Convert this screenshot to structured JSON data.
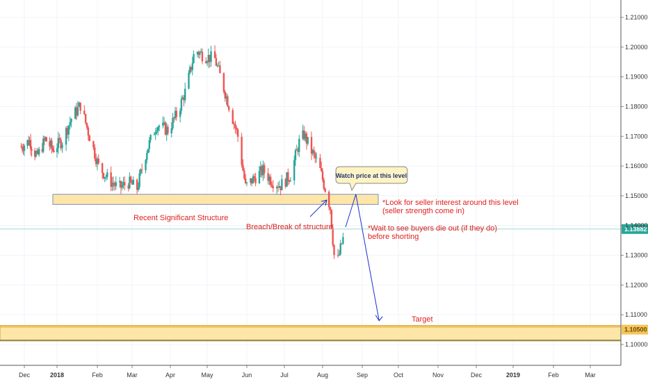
{
  "chart_data": {
    "type": "candlestick",
    "title": "",
    "y_axis": {
      "ticks": [
        "1.21000",
        "1.20000",
        "1.19000",
        "1.18000",
        "1.17000",
        "1.16000",
        "1.15000",
        "1.14000",
        "1.13000",
        "1.12000",
        "1.11000",
        "1.10000"
      ],
      "range": [
        1.0958,
        1.2136
      ]
    },
    "x_axis": {
      "ticks": [
        "Dec",
        "2018",
        "Feb",
        "Mar",
        "Apr",
        "May",
        "Jun",
        "Jul",
        "Aug",
        "Sep",
        "Oct",
        "Nov",
        "Dec",
        "2019",
        "Feb",
        "Mar"
      ]
    },
    "current_price": {
      "label": "1.13882",
      "value": 1.13882
    },
    "target_price": {
      "label": "1.10500",
      "value": 1.105
    },
    "zones": [
      {
        "name": "Recent Significant Structure",
        "from_price": 1.1471,
        "to_price": 1.1505
      },
      {
        "name": "Target",
        "from_price": 1.1012,
        "to_price": 1.1064
      }
    ],
    "annotations": [
      "Recent Significant Structure",
      "Breach/Break of structure",
      "*Look for seller interest around this level",
      "(seller strength come in)",
      "*Wait to see buyers die out (if they do)",
      "before shorting",
      "Target"
    ],
    "callout": "Watch price at this level",
    "price_path": [
      {
        "date": "2017-11-28",
        "close": 1.1665
      },
      {
        "date": "2017-12-06",
        "close": 1.1685
      },
      {
        "date": "2017-12-13",
        "close": 1.163
      },
      {
        "date": "2017-12-21",
        "close": 1.169
      },
      {
        "date": "2017-12-28",
        "close": 1.1655
      },
      {
        "date": "2018-01-05",
        "close": 1.1685
      },
      {
        "date": "2018-01-12",
        "close": 1.176
      },
      {
        "date": "2018-01-19",
        "close": 1.1805
      },
      {
        "date": "2018-01-26",
        "close": 1.17
      },
      {
        "date": "2018-02-02",
        "close": 1.16
      },
      {
        "date": "2018-02-10",
        "close": 1.1555
      },
      {
        "date": "2018-02-18",
        "close": 1.1525
      },
      {
        "date": "2018-02-26",
        "close": 1.1545
      },
      {
        "date": "2018-03-05",
        "close": 1.1525
      },
      {
        "date": "2018-03-13",
        "close": 1.1655
      },
      {
        "date": "2018-03-21",
        "close": 1.174
      },
      {
        "date": "2018-03-30",
        "close": 1.172
      },
      {
        "date": "2018-04-07",
        "close": 1.178
      },
      {
        "date": "2018-04-14",
        "close": 1.186
      },
      {
        "date": "2018-04-21",
        "close": 1.199
      },
      {
        "date": "2018-04-29",
        "close": 1.197
      },
      {
        "date": "2018-05-07",
        "close": 1.196
      },
      {
        "date": "2018-05-12",
        "close": 1.189
      },
      {
        "date": "2018-05-19",
        "close": 1.179
      },
      {
        "date": "2018-05-25",
        "close": 1.17
      },
      {
        "date": "2018-05-31",
        "close": 1.153
      },
      {
        "date": "2018-06-07",
        "close": 1.156
      },
      {
        "date": "2018-06-14",
        "close": 1.1585
      },
      {
        "date": "2018-06-21",
        "close": 1.155
      },
      {
        "date": "2018-06-28",
        "close": 1.1535
      },
      {
        "date": "2018-07-06",
        "close": 1.157
      },
      {
        "date": "2018-07-13",
        "close": 1.168
      },
      {
        "date": "2018-07-17",
        "close": 1.1705
      },
      {
        "date": "2018-07-23",
        "close": 1.165
      },
      {
        "date": "2018-07-29",
        "close": 1.16
      },
      {
        "date": "2018-08-04",
        "close": 1.151
      },
      {
        "date": "2018-08-07",
        "close": 1.146
      },
      {
        "date": "2018-08-10",
        "close": 1.13
      },
      {
        "date": "2018-08-13",
        "close": 1.1285
      },
      {
        "date": "2018-08-16",
        "close": 1.134
      },
      {
        "date": "2018-08-19",
        "close": 1.1385
      }
    ],
    "projection_path": [
      {
        "date": "2018-08-19",
        "price": 1.1395
      },
      {
        "date": "2018-08-27",
        "price": 1.1505
      },
      {
        "date": "2018-09-15",
        "price": 1.108
      }
    ],
    "colors": {
      "up": "#26a69a",
      "down": "#ef5350",
      "zone_fill": "#fde6a8",
      "zone_border": "#7b8dbd",
      "annotation": "#e0201f",
      "arrow": "#1a2fd0",
      "current_price": "#26a69a",
      "callout_fill": "#fff3c4"
    }
  }
}
